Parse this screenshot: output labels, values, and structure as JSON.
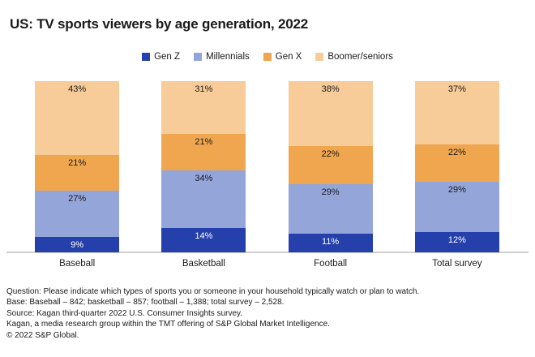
{
  "header": {
    "title": "US: TV sports viewers by age generation, 2022"
  },
  "chart_data": {
    "type": "bar",
    "stacked": true,
    "unit": "%",
    "title": "US: TV sports viewers by age generation, 2022",
    "categories": [
      "Baseball",
      "Basketball",
      "Football",
      "Total survey"
    ],
    "series": [
      {
        "name": "Gen Z",
        "color": "#2540ab",
        "label_color": "#ffffff",
        "values": [
          9,
          14,
          11,
          12
        ]
      },
      {
        "name": "Millennials",
        "color": "#94a5da",
        "label_color": "#1a1a1a",
        "values": [
          27,
          34,
          29,
          29
        ]
      },
      {
        "name": "Gen X",
        "color": "#f0a64e",
        "label_color": "#1a1a1a",
        "values": [
          21,
          21,
          22,
          22
        ]
      },
      {
        "name": "Boomer/seniors",
        "color": "#f7cc98",
        "label_color": "#1a1a1a",
        "values": [
          43,
          31,
          38,
          37
        ]
      }
    ],
    "ylim": [
      0,
      100
    ],
    "grid": false,
    "legend_position": "top",
    "value_label_format": "{value}%"
  },
  "footer": {
    "lines": [
      "Question: Please indicate which types of sports you or someone in your household typically watch or plan to watch.",
      "Base: Baseball – 842; basketball – 857; football – 1,388; total survey – 2,528.",
      "Source: Kagan third-quarter 2022 U.S. Consumer Insights survey.",
      "Kagan, a media research group within the TMT offering of S&P Global Market Intelligence.",
      "© 2022 S&P Global."
    ]
  }
}
